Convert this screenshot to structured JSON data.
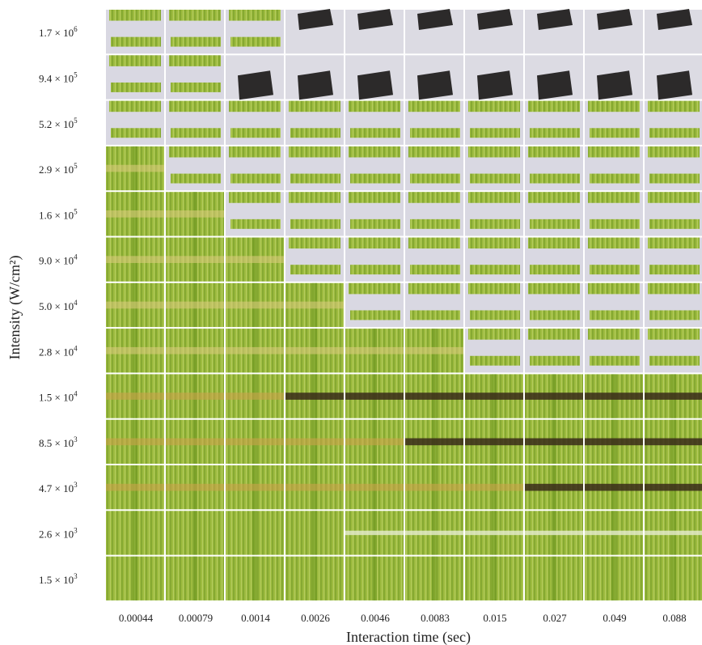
{
  "y_axis": {
    "title": "Intensity (W/cm²)",
    "rows": [
      {
        "base": "1.7 × 10",
        "exponent": "6"
      },
      {
        "base": "9.4 × 10",
        "exponent": "5"
      },
      {
        "base": "5.2 × 10",
        "exponent": "5"
      },
      {
        "base": "2.9 × 10",
        "exponent": "5"
      },
      {
        "base": "1.6 × 10",
        "exponent": "5"
      },
      {
        "base": "9.0 × 10",
        "exponent": "4"
      },
      {
        "base": "5.0 × 10",
        "exponent": "4"
      },
      {
        "base": "2.8 × 10",
        "exponent": "4"
      },
      {
        "base": "1.5 × 10",
        "exponent": "4"
      },
      {
        "base": "8.5 × 10",
        "exponent": "3"
      },
      {
        "base": "4.7 × 10",
        "exponent": "3"
      },
      {
        "base": "2.6 × 10",
        "exponent": "3"
      },
      {
        "base": "1.5 × 10",
        "exponent": "3"
      }
    ]
  },
  "x_axis": {
    "title": "Interaction time (sec)",
    "columns": [
      "0.00044",
      "0.00079",
      "0.0014",
      "0.0026",
      "0.0046",
      "0.0083",
      "0.015",
      "0.027",
      "0.049",
      "0.088"
    ]
  }
}
